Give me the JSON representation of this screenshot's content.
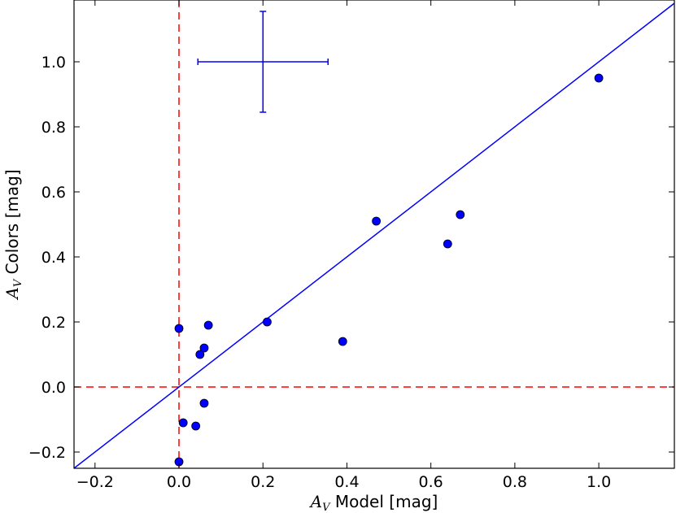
{
  "chart_data": {
    "type": "scatter",
    "xlabel": {
      "symbol": "A",
      "subscript": "V",
      "text": " Model [mag]"
    },
    "ylabel": {
      "symbol": "A",
      "subscript": "V",
      "text": " Colors [mag]"
    },
    "xlim": [
      -0.25,
      1.18
    ],
    "ylim": [
      -0.25,
      1.19
    ],
    "x_ticks": [
      -0.2,
      0.0,
      0.2,
      0.4,
      0.6,
      0.8,
      1.0
    ],
    "x_tick_labels": [
      "−0.2",
      "0.0",
      "0.2",
      "0.4",
      "0.6",
      "0.8",
      "1.0"
    ],
    "y_ticks": [
      -0.2,
      0.0,
      0.2,
      0.4,
      0.6,
      0.8,
      1.0
    ],
    "y_tick_labels": [
      "−0.2",
      "0.0",
      "0.2",
      "0.4",
      "0.6",
      "0.8",
      "1.0"
    ],
    "grid": false,
    "points": [
      {
        "x": 0.0,
        "y": 0.18
      },
      {
        "x": 0.07,
        "y": 0.19
      },
      {
        "x": 0.06,
        "y": 0.12
      },
      {
        "x": 0.05,
        "y": 0.1
      },
      {
        "x": 0.21,
        "y": 0.2
      },
      {
        "x": 0.39,
        "y": 0.14
      },
      {
        "x": 0.47,
        "y": 0.51
      },
      {
        "x": 0.64,
        "y": 0.44
      },
      {
        "x": 0.67,
        "y": 0.53
      },
      {
        "x": 1.0,
        "y": 0.95
      },
      {
        "x": 0.06,
        "y": -0.05
      },
      {
        "x": 0.01,
        "y": -0.11
      },
      {
        "x": 0.04,
        "y": -0.12
      },
      {
        "x": 0.0,
        "y": -0.23
      }
    ],
    "one_to_one_line": {
      "x": [
        -0.25,
        1.18
      ],
      "y": [
        -0.25,
        1.18
      ]
    },
    "reference_lines": {
      "vertical_x": 0.0,
      "horizontal_y": 0.0
    },
    "error_bar_example": {
      "x": 0.2,
      "y": 1.0,
      "xerr": 0.155,
      "yerr": 0.155
    },
    "colors": {
      "points": "#0000ff",
      "point_edge": "#000000",
      "line": "#0000ff",
      "reference": "#ff0000",
      "errorbar": "#0000ff"
    }
  }
}
